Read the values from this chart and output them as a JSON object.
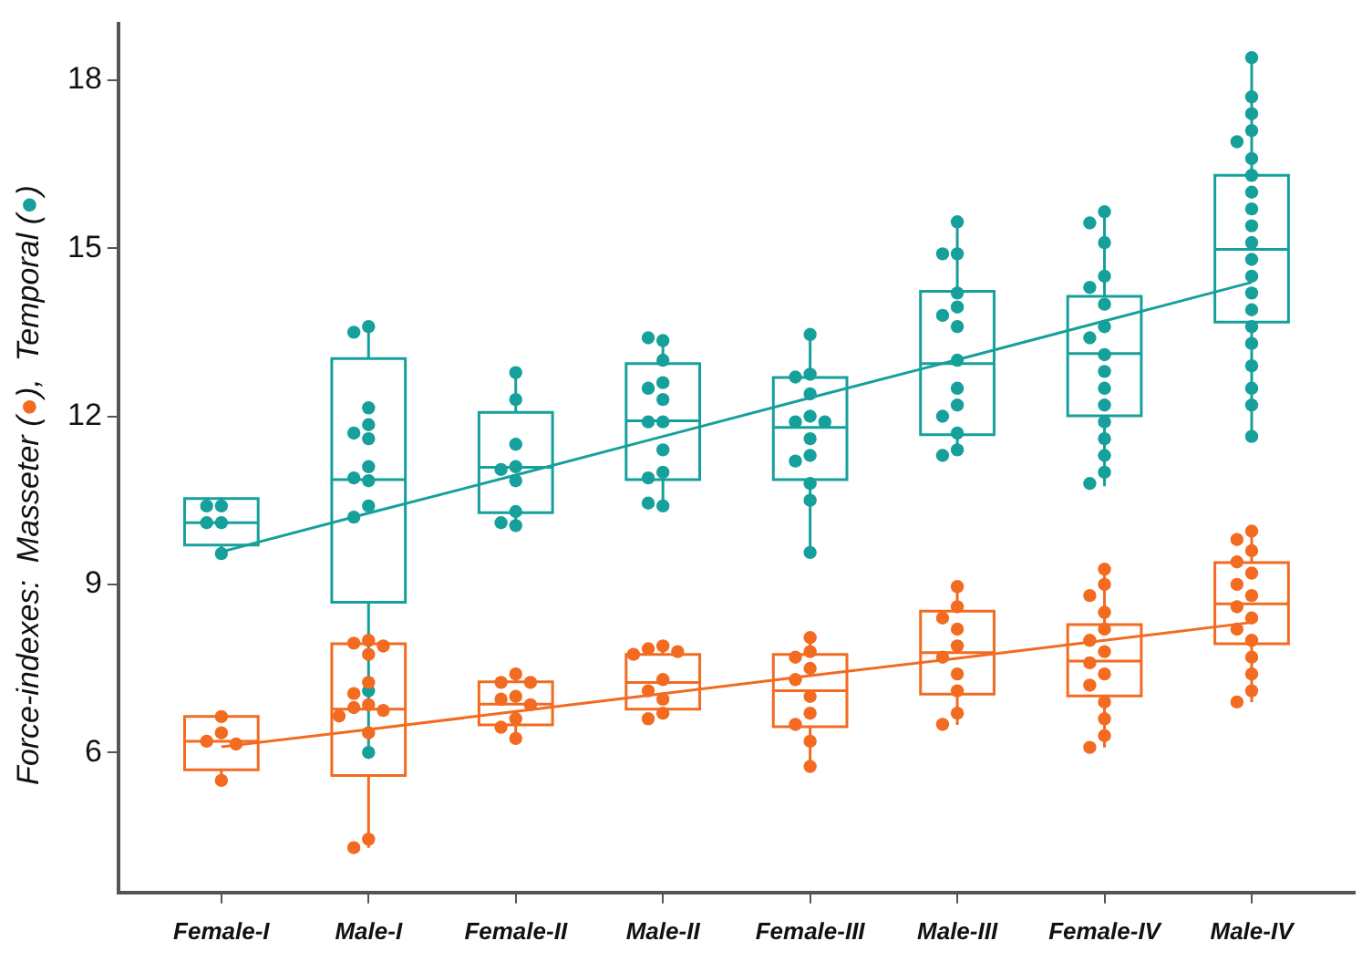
{
  "chart_data": {
    "type": "box",
    "ylabel": "Force-indexes:  Masseter (●),  Temporal (●)",
    "categories": [
      "Female-I",
      "Male-I",
      "Female-II",
      "Male-II",
      "Female-III",
      "Male-III",
      "Female-IV",
      "Male-IV"
    ],
    "ylim": [
      3.5,
      19
    ],
    "yticks": [
      6,
      9,
      12,
      15,
      18
    ],
    "grid": false,
    "series": [
      {
        "color": "#f26b21",
        "boxes": [
          {
            "low": 5.5,
            "q1": 5.69,
            "median": 6.2,
            "q3": 6.64,
            "high": 6.64
          },
          {
            "low": 4.3,
            "q1": 5.59,
            "median": 6.77,
            "q3": 7.94,
            "high": 8.0
          },
          {
            "low": 6.25,
            "q1": 6.49,
            "median": 6.86,
            "q3": 7.26,
            "high": 7.4
          },
          {
            "low": 6.6,
            "q1": 6.77,
            "median": 7.25,
            "q3": 7.75,
            "high": 7.9
          },
          {
            "low": 5.75,
            "q1": 6.46,
            "median": 7.1,
            "q3": 7.75,
            "high": 8.05
          },
          {
            "low": 6.49,
            "q1": 7.04,
            "median": 7.78,
            "q3": 8.52,
            "high": 8.96
          },
          {
            "low": 6.09,
            "q1": 7.01,
            "median": 7.63,
            "q3": 8.28,
            "high": 9.27
          },
          {
            "low": 6.9,
            "q1": 7.94,
            "median": 8.65,
            "q3": 9.39,
            "high": 9.95
          }
        ]
      },
      {
        "color": "#16a09b",
        "boxes": [
          {
            "low": 9.55,
            "q1": 9.7,
            "median": 10.1,
            "q3": 10.53,
            "high": 10.53
          },
          {
            "low": 6.0,
            "q1": 8.68,
            "median": 10.87,
            "q3": 13.03,
            "high": 13.6
          },
          {
            "low": 10.0,
            "q1": 10.28,
            "median": 11.09,
            "q3": 12.07,
            "high": 12.78
          },
          {
            "low": 10.4,
            "q1": 10.87,
            "median": 11.92,
            "q3": 12.94,
            "high": 13.4
          },
          {
            "low": 9.57,
            "q1": 10.87,
            "median": 11.8,
            "q3": 12.69,
            "high": 13.46
          },
          {
            "low": 11.33,
            "q1": 11.67,
            "median": 12.94,
            "q3": 14.23,
            "high": 15.47
          },
          {
            "low": 10.75,
            "q1": 12.01,
            "median": 13.12,
            "q3": 14.14,
            "high": 15.65
          },
          {
            "low": 11.64,
            "q1": 13.68,
            "median": 14.98,
            "q3": 16.3,
            "high": 18.4
          }
        ]
      },
      {
        "type": "scatter",
        "marker": "circle",
        "color": "#f26b21",
        "x": [
          "Female-I",
          "Female-I",
          "Female-I",
          "Female-I",
          "Female-I",
          "Male-I",
          "Male-I",
          "Male-I",
          "Male-I",
          "Male-I",
          "Male-I",
          "Male-I",
          "Male-I",
          "Male-I",
          "Male-I",
          "Male-I",
          "Male-I",
          "Male-I",
          "Female-II",
          "Female-II",
          "Female-II",
          "Female-II",
          "Female-II",
          "Female-II",
          "Female-II",
          "Female-II",
          "Female-II",
          "Male-II",
          "Male-II",
          "Male-II",
          "Male-II",
          "Male-II",
          "Male-II",
          "Male-II",
          "Male-II",
          "Male-II",
          "Female-III",
          "Female-III",
          "Female-III",
          "Female-III",
          "Female-III",
          "Female-III",
          "Female-III",
          "Female-III",
          "Female-III",
          "Female-III",
          "Male-III",
          "Male-III",
          "Male-III",
          "Male-III",
          "Male-III",
          "Male-III",
          "Male-III",
          "Male-III",
          "Male-III",
          "Male-III",
          "Female-IV",
          "Female-IV",
          "Female-IV",
          "Female-IV",
          "Female-IV",
          "Female-IV",
          "Female-IV",
          "Female-IV",
          "Female-IV",
          "Female-IV",
          "Female-IV",
          "Female-IV",
          "Female-IV",
          "Female-IV",
          "Male-IV",
          "Male-IV",
          "Male-IV",
          "Male-IV",
          "Male-IV",
          "Male-IV",
          "Male-IV",
          "Male-IV",
          "Male-IV",
          "Male-IV",
          "Male-IV",
          "Male-IV",
          "Male-IV",
          "Male-IV",
          "Male-IV"
        ],
        "values": [
          6.64,
          6.35,
          6.2,
          6.15,
          5.5,
          8.0,
          7.95,
          7.9,
          7.75,
          7.25,
          7.05,
          6.85,
          6.8,
          6.75,
          6.65,
          6.35,
          4.45,
          4.3,
          7.4,
          7.25,
          7.25,
          7.0,
          6.95,
          6.85,
          6.6,
          6.45,
          6.25,
          7.9,
          7.85,
          7.8,
          7.75,
          7.3,
          7.1,
          6.95,
          6.7,
          6.6,
          8.05,
          7.8,
          7.7,
          7.5,
          7.3,
          7.0,
          6.7,
          6.5,
          6.2,
          5.75,
          8.96,
          8.6,
          8.4,
          8.2,
          7.9,
          7.7,
          7.4,
          7.1,
          6.7,
          6.5,
          9.27,
          9.0,
          8.8,
          8.5,
          8.2,
          8.0,
          7.8,
          7.6,
          7.4,
          7.2,
          6.9,
          6.6,
          6.3,
          6.09,
          9.95,
          9.8,
          9.6,
          9.4,
          9.2,
          9.0,
          8.8,
          8.6,
          8.4,
          8.2,
          8.0,
          7.7,
          7.4,
          7.1,
          6.9
        ]
      },
      {
        "type": "scatter",
        "marker": "circle",
        "color": "#16a09b",
        "x": [
          "Female-I",
          "Female-I",
          "Female-I",
          "Female-I",
          "Female-I",
          "Male-I",
          "Male-I",
          "Male-I",
          "Male-I",
          "Male-I",
          "Male-I",
          "Male-I",
          "Male-I",
          "Male-I",
          "Male-I",
          "Male-I",
          "Male-I",
          "Male-I",
          "Female-II",
          "Female-II",
          "Female-II",
          "Female-II",
          "Female-II",
          "Female-II",
          "Female-II",
          "Female-II",
          "Female-II",
          "Male-II",
          "Male-II",
          "Male-II",
          "Male-II",
          "Male-II",
          "Male-II",
          "Male-II",
          "Male-II",
          "Male-II",
          "Male-II",
          "Male-II",
          "Male-II",
          "Male-II",
          "Female-III",
          "Female-III",
          "Female-III",
          "Female-III",
          "Female-III",
          "Female-III",
          "Female-III",
          "Female-III",
          "Female-III",
          "Female-III",
          "Female-III",
          "Female-III",
          "Female-III",
          "Male-III",
          "Male-III",
          "Male-III",
          "Male-III",
          "Male-III",
          "Male-III",
          "Male-III",
          "Male-III",
          "Male-III",
          "Male-III",
          "Male-III",
          "Male-III",
          "Male-III",
          "Male-III",
          "Female-IV",
          "Female-IV",
          "Female-IV",
          "Female-IV",
          "Female-IV",
          "Female-IV",
          "Female-IV",
          "Female-IV",
          "Female-IV",
          "Female-IV",
          "Female-IV",
          "Female-IV",
          "Female-IV",
          "Female-IV",
          "Female-IV",
          "Female-IV",
          "Female-IV",
          "Male-IV",
          "Male-IV",
          "Male-IV",
          "Male-IV",
          "Male-IV",
          "Male-IV",
          "Male-IV",
          "Male-IV",
          "Male-IV",
          "Male-IV",
          "Male-IV",
          "Male-IV",
          "Male-IV",
          "Male-IV",
          "Male-IV",
          "Male-IV",
          "Male-IV",
          "Male-IV",
          "Male-IV",
          "Male-IV",
          "Male-IV"
        ],
        "values": [
          10.4,
          10.4,
          10.1,
          10.1,
          9.55,
          13.6,
          13.5,
          12.15,
          11.85,
          11.7,
          11.6,
          11.1,
          10.85,
          10.9,
          10.4,
          10.2,
          7.1,
          6.0,
          12.78,
          12.3,
          11.5,
          11.1,
          11.05,
          10.85,
          10.3,
          10.05,
          10.1,
          13.35,
          13.4,
          13.0,
          12.6,
          12.5,
          12.3,
          11.9,
          11.9,
          11.4,
          11.0,
          10.9,
          10.4,
          10.45,
          13.46,
          12.75,
          12.7,
          12.4,
          12.0,
          11.9,
          11.9,
          11.6,
          11.3,
          11.2,
          10.8,
          10.5,
          9.57,
          15.47,
          14.9,
          14.9,
          14.2,
          13.95,
          13.8,
          13.6,
          13.0,
          12.5,
          12.2,
          12.0,
          11.7,
          11.4,
          11.3,
          15.65,
          15.45,
          15.1,
          14.5,
          14.3,
          14.0,
          13.6,
          13.4,
          13.1,
          12.8,
          12.5,
          12.2,
          11.9,
          11.6,
          11.3,
          11.0,
          10.8,
          18.4,
          17.7,
          17.4,
          17.1,
          16.9,
          16.6,
          16.3,
          16.0,
          15.7,
          15.4,
          15.1,
          14.8,
          14.5,
          14.2,
          13.9,
          13.6,
          13.3,
          12.9,
          12.5,
          12.2,
          11.64
        ]
      },
      {
        "type": "line",
        "color": "#f26b21",
        "values": [
          6.1,
          6.41,
          6.73,
          7.05,
          7.37,
          7.68,
          8.0,
          8.32
        ]
      },
      {
        "type": "line",
        "color": "#16a09b",
        "values": [
          9.58,
          10.27,
          10.95,
          11.64,
          12.33,
          13.01,
          13.7,
          14.39
        ]
      }
    ]
  }
}
